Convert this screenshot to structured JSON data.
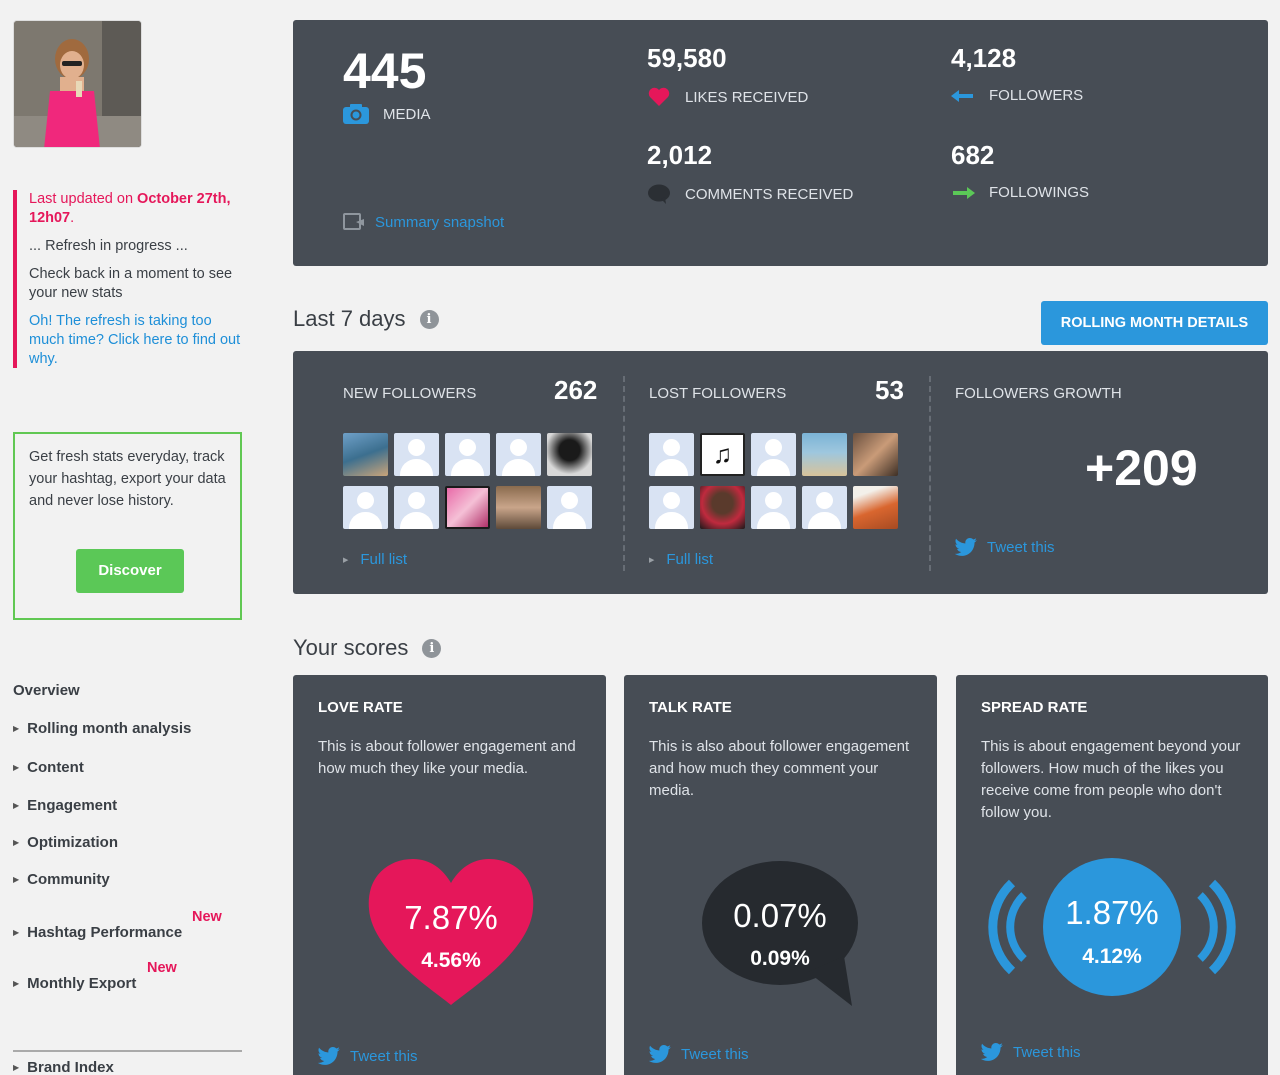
{
  "sidebar": {
    "update": {
      "prefix": "Last updated on ",
      "date": "October 27th, 12h07",
      "suffix": ".",
      "refresh": "... Refresh in progress ...",
      "check_back": "Check back in a moment to see your new stats",
      "too_long": "Oh! The refresh is taking too much time? Click here to find out why."
    },
    "promo": {
      "text": "Get fresh stats everyday, track your hashtag, export your data and never lose history.",
      "button": "Discover"
    },
    "nav": {
      "heading": "Overview",
      "items": [
        {
          "label": "Rolling month analysis"
        },
        {
          "label": "Content"
        },
        {
          "label": "Engagement"
        },
        {
          "label": "Optimization"
        },
        {
          "label": "Community"
        },
        {
          "label": "Hashtag Performance",
          "badge": "New"
        },
        {
          "label": "Monthly Export",
          "badge": "New"
        },
        {
          "label": "Brand Index"
        }
      ]
    }
  },
  "summary": {
    "media_count": "445",
    "media_label": "MEDIA",
    "likes_count": "59,580",
    "likes_label": "LIKES RECEIVED",
    "followers_count": "4,128",
    "followers_label": "FOLLOWERS",
    "comments_count": "2,012",
    "comments_label": "COMMENTS RECEIVED",
    "followings_count": "682",
    "followings_label": "FOLLOWINGS",
    "snapshot_link": "Summary snapshot"
  },
  "last7": {
    "title": "Last 7 days",
    "rolling_button": "ROLLING MONTH DETAILS",
    "new_followers_label": "NEW FOLLOWERS",
    "new_followers_count": "262",
    "lost_followers_label": "LOST FOLLOWERS",
    "lost_followers_count": "53",
    "growth_label": "FOLLOWERS GROWTH",
    "growth_value": "+209",
    "full_list": "Full list",
    "tweet": "Tweet this"
  },
  "scores": {
    "title": "Your scores",
    "cards": [
      {
        "title": "LOVE RATE",
        "desc": "This is about follower engagement and how much they like your media.",
        "main": "7.87%",
        "sub": "4.56%",
        "tweet": "Tweet this"
      },
      {
        "title": "TALK RATE",
        "desc": "This is also about follower engagement and how much they comment your media.",
        "main": "0.07%",
        "sub": "0.09%",
        "tweet": "Tweet this"
      },
      {
        "title": "SPREAD RATE",
        "desc": "This is about engagement beyond your followers. How much of the likes you receive come from people who don't follow you.",
        "main": "1.87%",
        "sub": "4.12%",
        "tweet": "Tweet this"
      }
    ]
  },
  "colors": {
    "accent_pink": "#e5175a",
    "accent_blue": "#2b97dc",
    "accent_green": "#5bc857",
    "card_bg": "#474d55"
  }
}
